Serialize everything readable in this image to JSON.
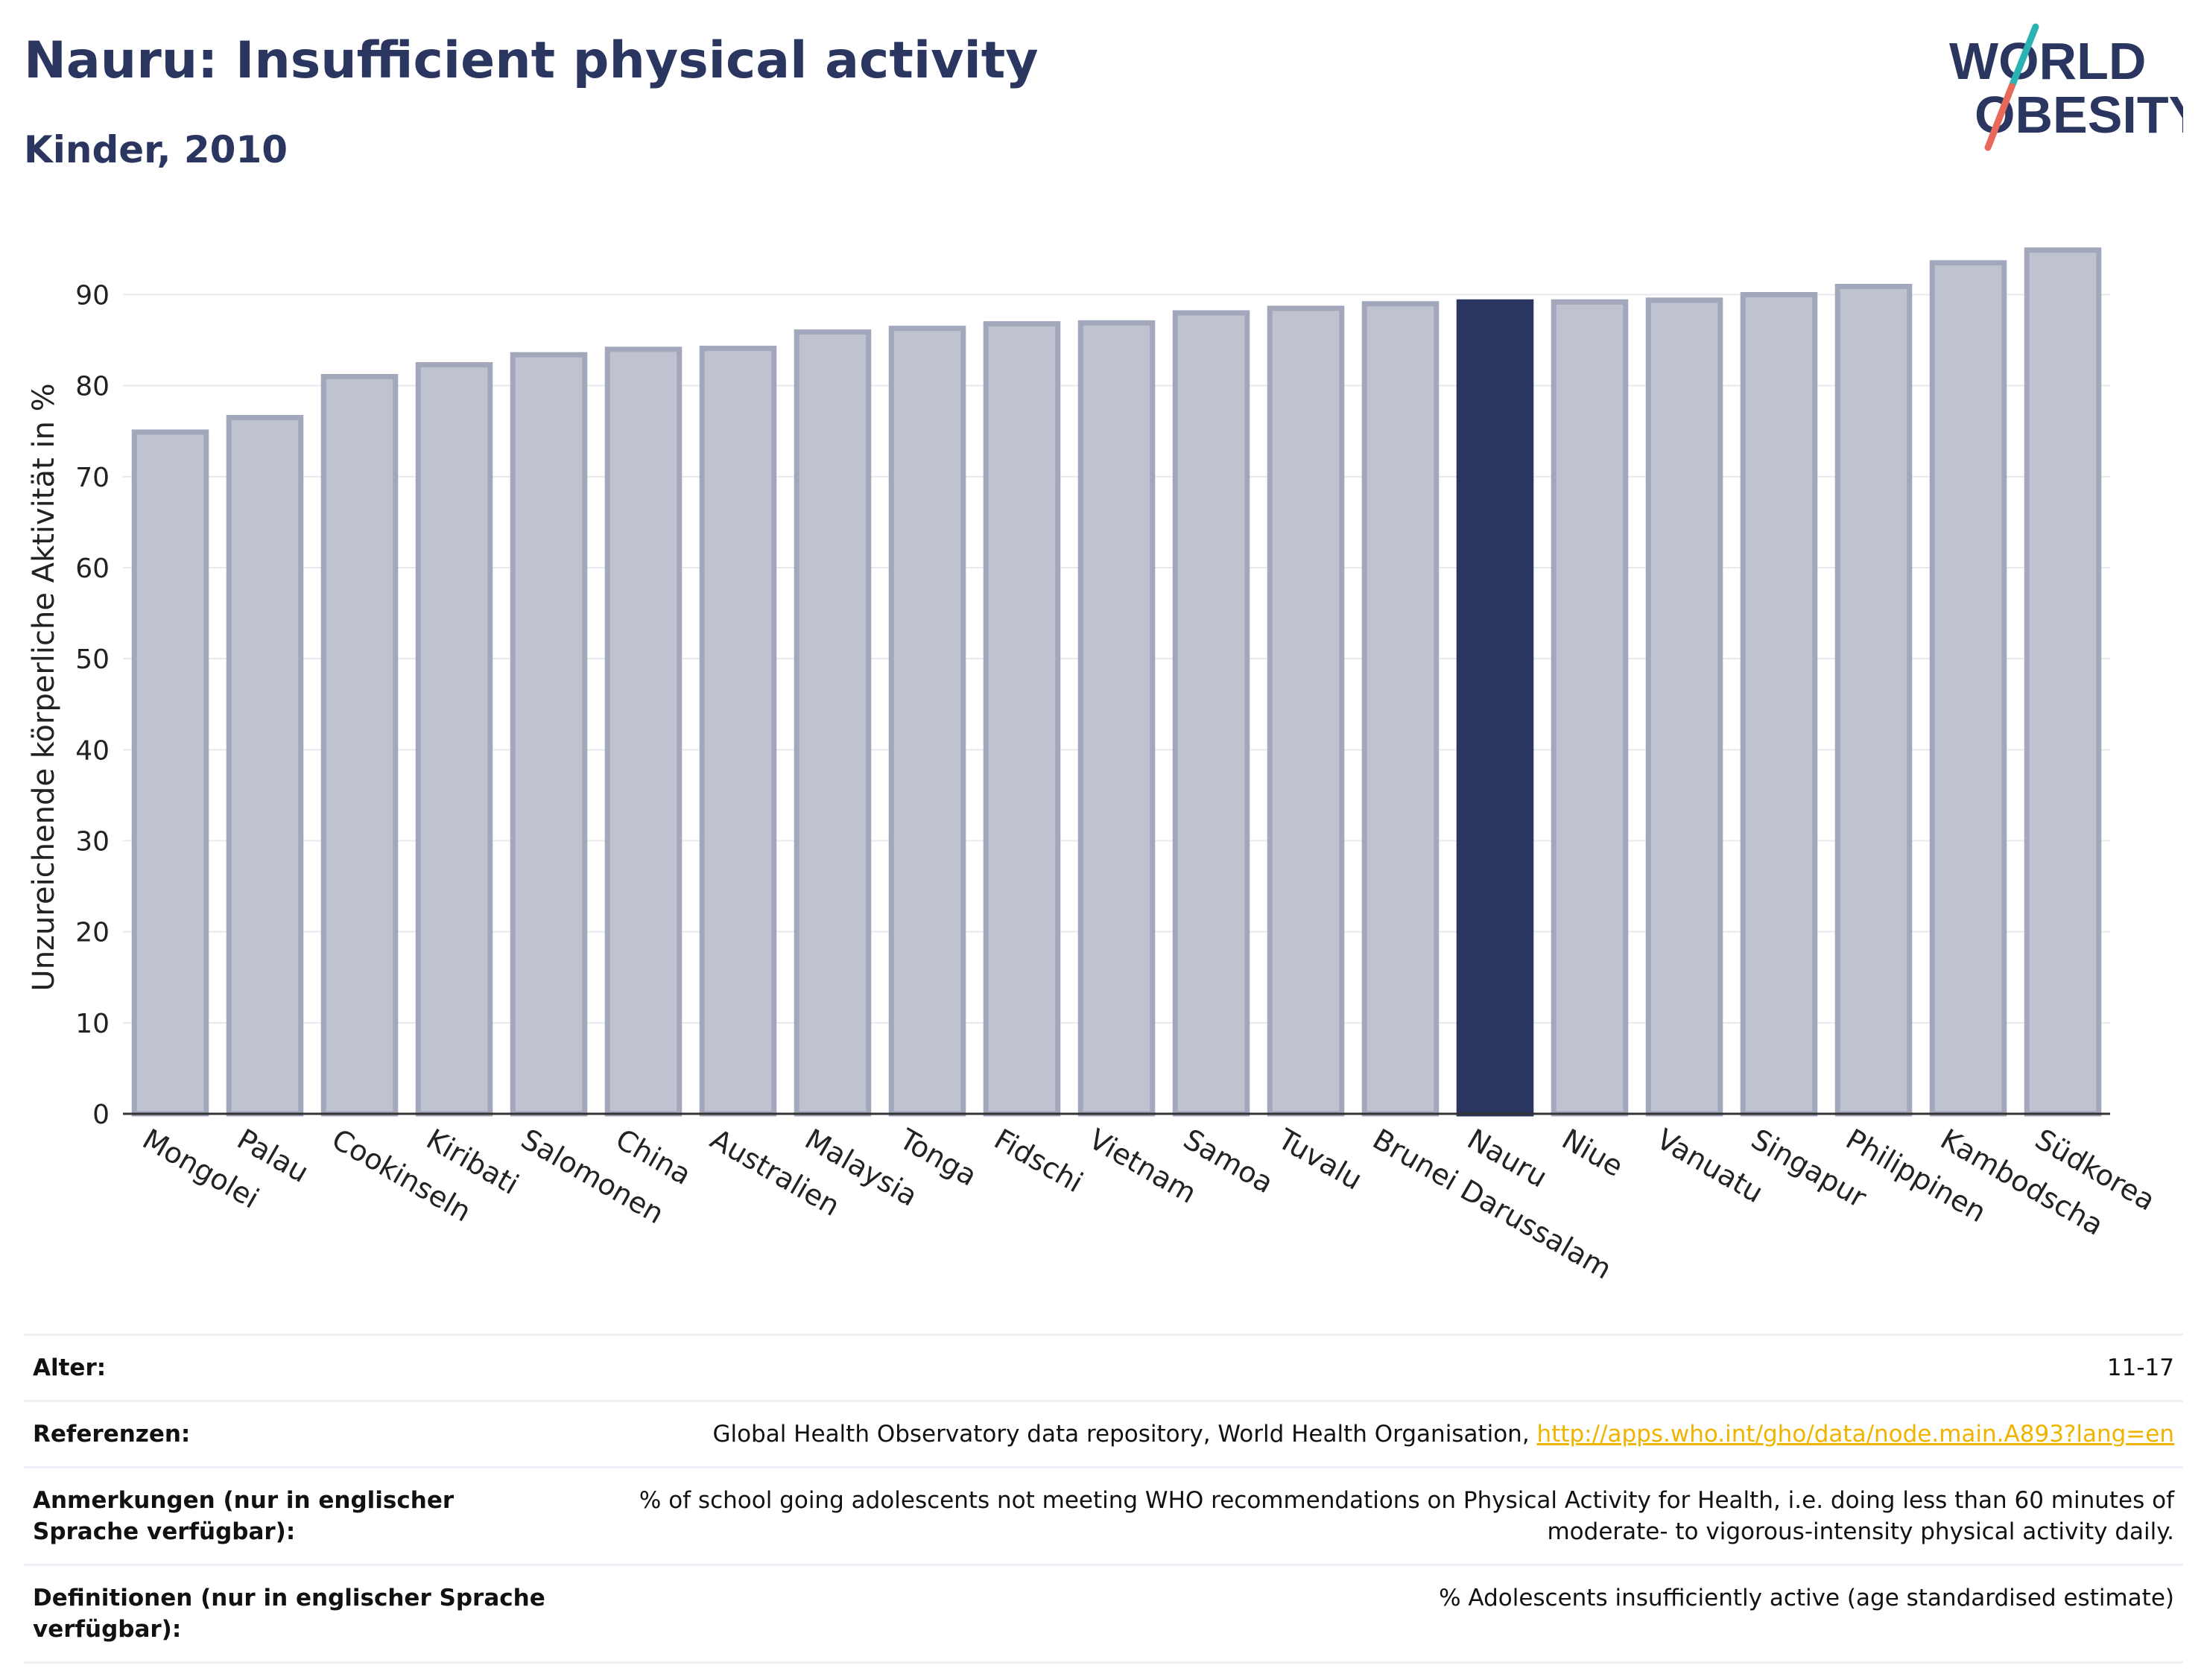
{
  "title": "Nauru: Insufficient physical activity",
  "subtitle": "Kinder, 2010",
  "logo": {
    "line1": "WORLD",
    "line2": "OBESITY",
    "teal": "#2bb3b3",
    "red": "#e8685a",
    "navy": "#2a3560"
  },
  "colors": {
    "bar": "#bfc2cf",
    "bar_border": "#a2a7bb",
    "highlight": "#2a3560",
    "grid": "#e8e9ee",
    "axis": "#333333"
  },
  "chart_data": {
    "type": "bar",
    "ylabel": "Unzureichende körperliche Aktivität in %",
    "ylim": [
      0,
      97
    ],
    "yticks": [
      0,
      10,
      20,
      30,
      40,
      50,
      60,
      70,
      80,
      90
    ],
    "grid": true,
    "highlight": "Nauru",
    "categories": [
      "Mongolei",
      "Palau",
      "Cookinseln",
      "Kiribati",
      "Salomonen",
      "China",
      "Australien",
      "Malaysia",
      "Tonga",
      "Fidschi",
      "Vietnam",
      "Samoa",
      "Tuvalu",
      "Brunei Darussalam",
      "Nauru",
      "Niue",
      "Vanuatu",
      "Singapur",
      "Philippinen",
      "Kambodscha",
      "Südkorea"
    ],
    "values": [
      74.9,
      76.5,
      81.0,
      82.3,
      83.4,
      84.0,
      84.1,
      85.9,
      86.3,
      86.8,
      86.9,
      88.0,
      88.5,
      89.0,
      89.2,
      89.2,
      89.4,
      90.0,
      90.9,
      93.5,
      94.9
    ]
  },
  "meta": [
    {
      "key": "Alter:",
      "value": "11-17"
    },
    {
      "key": "Referenzen:",
      "value": "Global Health Observatory data repository, World Health Organisation, ",
      "link": "http://apps.who.int/gho/data/node.main.A893?lang=en"
    },
    {
      "key": "Anmerkungen (nur in englischer Sprache verfügbar):",
      "value": "% of school going adolescents not meeting WHO recommendations on Physical Activity for Health, i.e. doing less than 60 minutes of moderate- to vigorous-intensity physical activity daily."
    },
    {
      "key": "Definitionen (nur in englischer Sprache verfügbar):",
      "value": "% Adolescents insufficiently active (age standardised estimate)"
    }
  ]
}
